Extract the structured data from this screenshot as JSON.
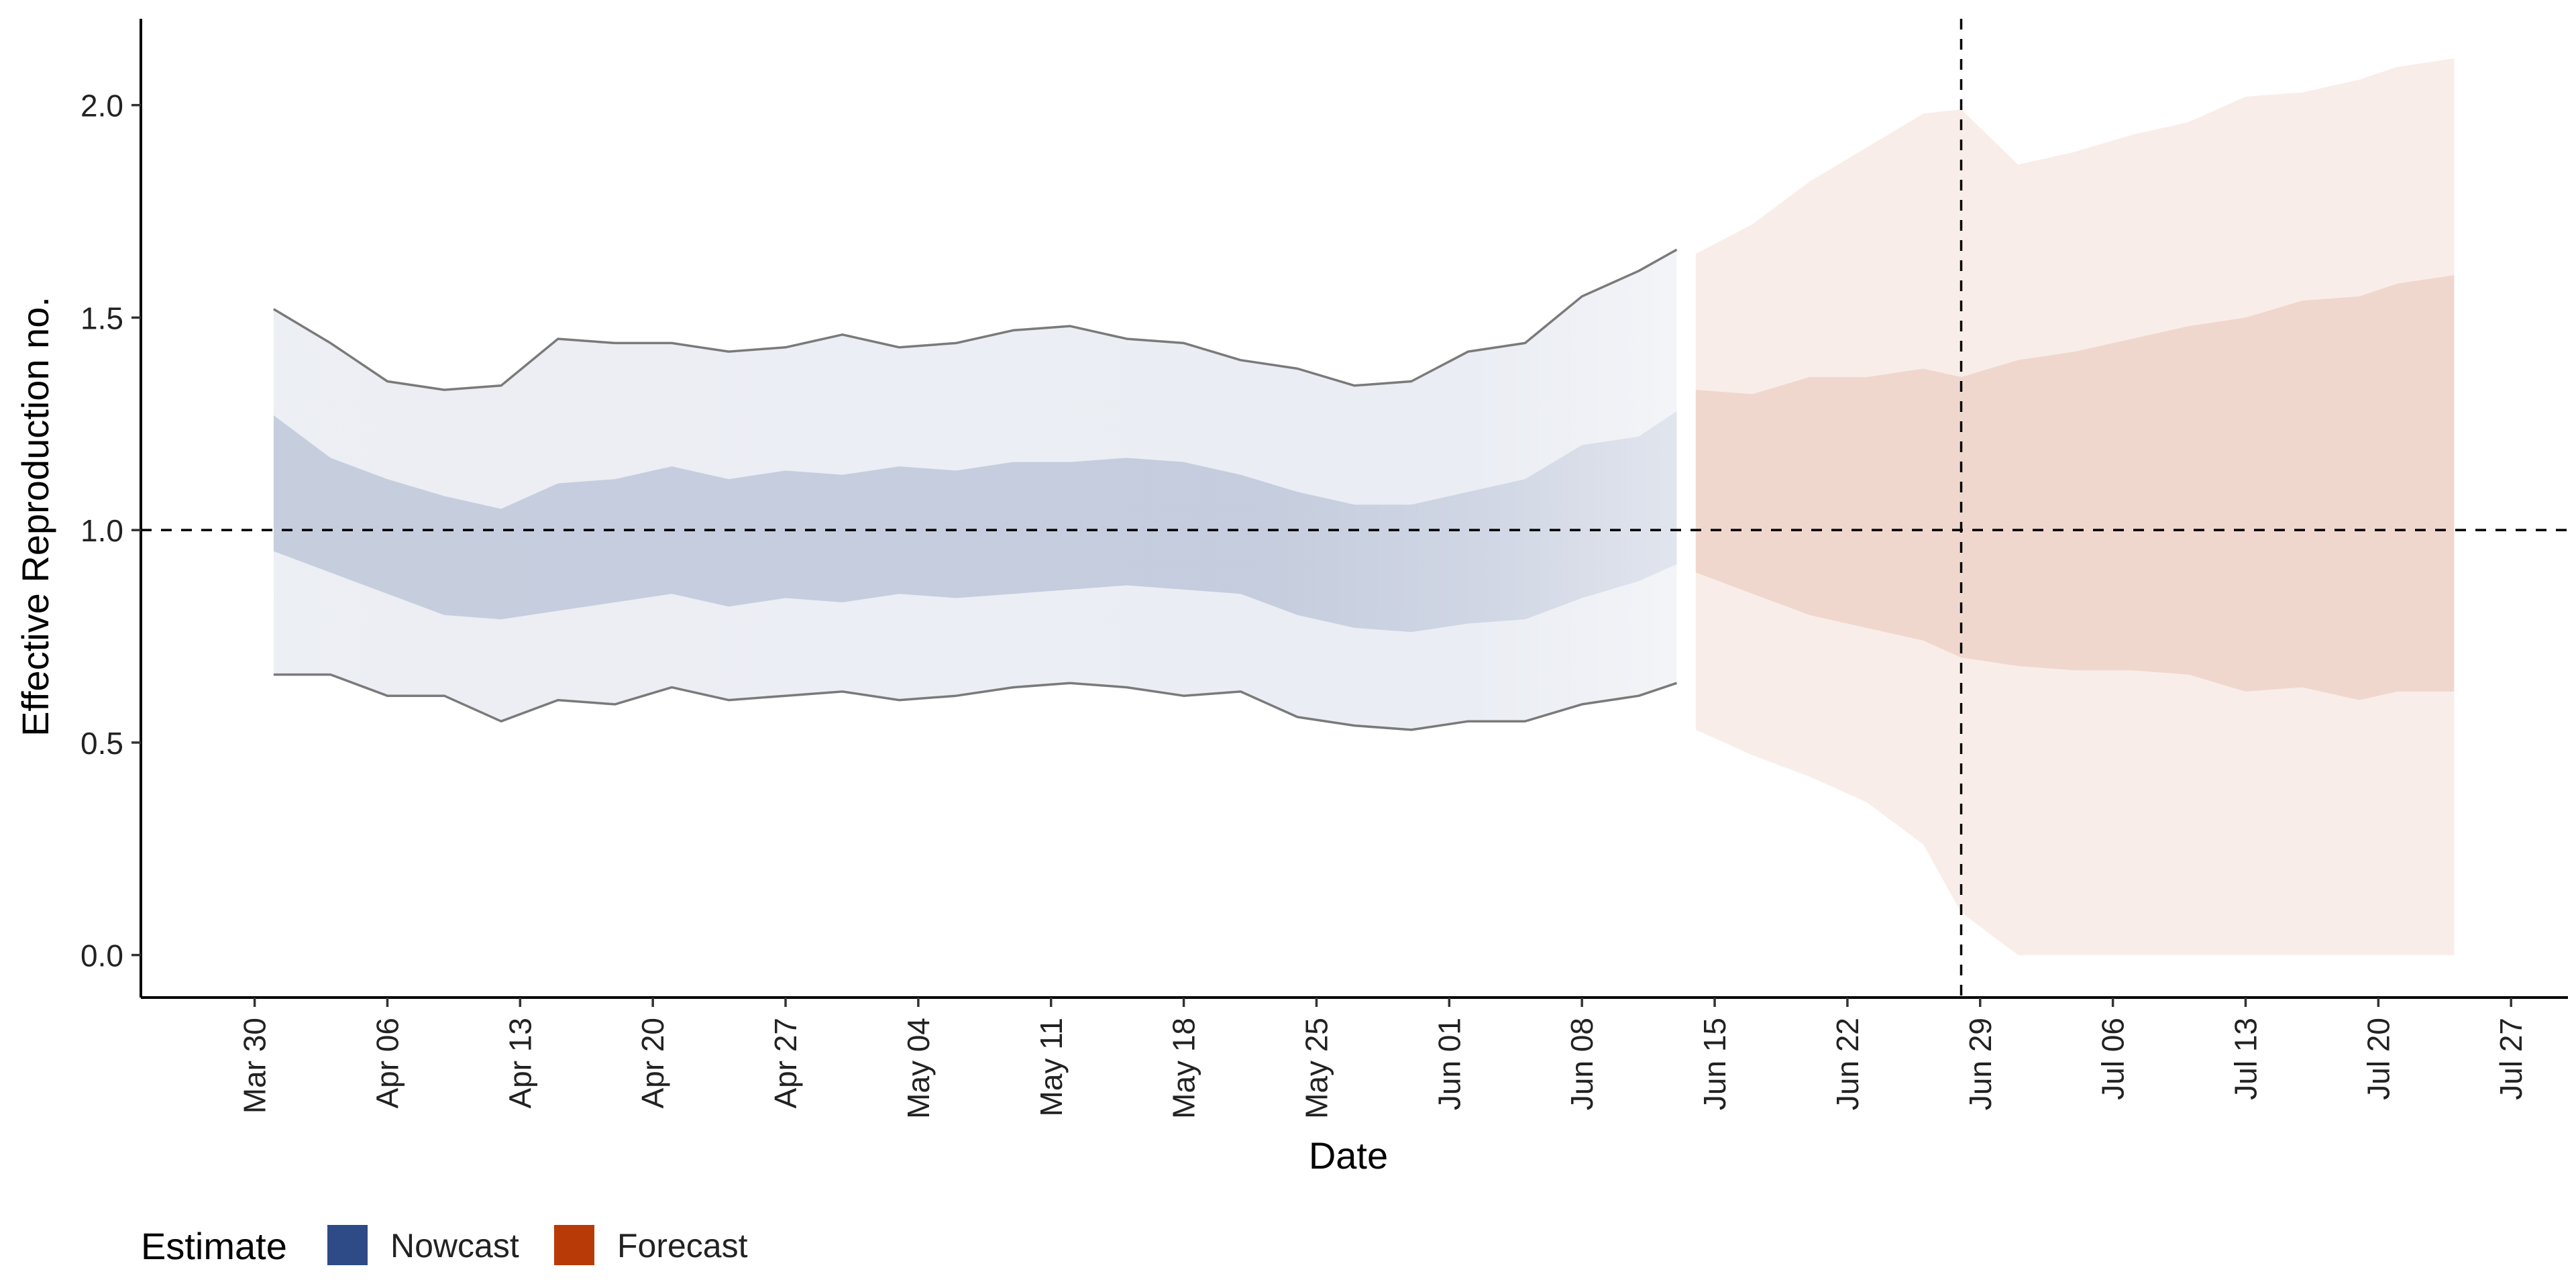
{
  "chart_data": {
    "type": "area",
    "xlabel": "Date",
    "ylabel": "Effective Reproduction no.",
    "x_axis": {
      "type": "date",
      "range": [
        "2020-03-24",
        "2020-07-30"
      ],
      "ticks": [
        {
          "date": "2020-03-30",
          "label": "Mar 30"
        },
        {
          "date": "2020-04-06",
          "label": "Apr 06"
        },
        {
          "date": "2020-04-13",
          "label": "Apr 13"
        },
        {
          "date": "2020-04-20",
          "label": "Apr 20"
        },
        {
          "date": "2020-04-27",
          "label": "Apr 27"
        },
        {
          "date": "2020-05-04",
          "label": "May 04"
        },
        {
          "date": "2020-05-11",
          "label": "May 11"
        },
        {
          "date": "2020-05-18",
          "label": "May 18"
        },
        {
          "date": "2020-05-25",
          "label": "May 25"
        },
        {
          "date": "2020-06-01",
          "label": "Jun 01"
        },
        {
          "date": "2020-06-08",
          "label": "Jun 08"
        },
        {
          "date": "2020-06-15",
          "label": "Jun 15"
        },
        {
          "date": "2020-06-22",
          "label": "Jun 22"
        },
        {
          "date": "2020-06-29",
          "label": "Jun 29"
        },
        {
          "date": "2020-07-06",
          "label": "Jul 06"
        },
        {
          "date": "2020-07-13",
          "label": "Jul 13"
        },
        {
          "date": "2020-07-20",
          "label": "Jul 20"
        },
        {
          "date": "2020-07-27",
          "label": "Jul 27"
        }
      ]
    },
    "y_axis": {
      "range": [
        -0.1,
        2.2
      ],
      "ticks": [
        {
          "value": 0.0,
          "label": "0.0"
        },
        {
          "value": 0.5,
          "label": "0.5"
        },
        {
          "value": 1.0,
          "label": "1.0"
        },
        {
          "value": 1.5,
          "label": "1.5"
        },
        {
          "value": 2.0,
          "label": "2.0"
        }
      ]
    },
    "reference_lines": {
      "horizontal_y": 1.0,
      "vertical_date": "2020-06-28"
    },
    "grid": false,
    "legend": {
      "title": "Estimate",
      "position": "bottom-left",
      "entries": [
        {
          "name": "Nowcast",
          "color": "#2e4a87"
        },
        {
          "name": "Forecast",
          "color": "#b83a06"
        }
      ]
    },
    "series": [
      {
        "name": "Nowcast",
        "color": "#2e4a87",
        "points": [
          {
            "x": "2020-03-31",
            "lower90": 0.66,
            "lower50": 0.95,
            "upper50": 1.27,
            "upper90": 1.52
          },
          {
            "x": "2020-04-03",
            "lower90": 0.66,
            "lower50": 0.9,
            "upper50": 1.17,
            "upper90": 1.44
          },
          {
            "x": "2020-04-06",
            "lower90": 0.61,
            "lower50": 0.85,
            "upper50": 1.12,
            "upper90": 1.35
          },
          {
            "x": "2020-04-09",
            "lower90": 0.61,
            "lower50": 0.8,
            "upper50": 1.08,
            "upper90": 1.33
          },
          {
            "x": "2020-04-12",
            "lower90": 0.55,
            "lower50": 0.79,
            "upper50": 1.05,
            "upper90": 1.34
          },
          {
            "x": "2020-04-15",
            "lower90": 0.6,
            "lower50": 0.81,
            "upper50": 1.11,
            "upper90": 1.45
          },
          {
            "x": "2020-04-18",
            "lower90": 0.59,
            "lower50": 0.83,
            "upper50": 1.12,
            "upper90": 1.44
          },
          {
            "x": "2020-04-21",
            "lower90": 0.63,
            "lower50": 0.85,
            "upper50": 1.15,
            "upper90": 1.44
          },
          {
            "x": "2020-04-24",
            "lower90": 0.6,
            "lower50": 0.82,
            "upper50": 1.12,
            "upper90": 1.42
          },
          {
            "x": "2020-04-27",
            "lower90": 0.61,
            "lower50": 0.84,
            "upper50": 1.14,
            "upper90": 1.43
          },
          {
            "x": "2020-04-30",
            "lower90": 0.62,
            "lower50": 0.83,
            "upper50": 1.13,
            "upper90": 1.46
          },
          {
            "x": "2020-05-03",
            "lower90": 0.6,
            "lower50": 0.85,
            "upper50": 1.15,
            "upper90": 1.43
          },
          {
            "x": "2020-05-06",
            "lower90": 0.61,
            "lower50": 0.84,
            "upper50": 1.14,
            "upper90": 1.44
          },
          {
            "x": "2020-05-09",
            "lower90": 0.63,
            "lower50": 0.85,
            "upper50": 1.16,
            "upper90": 1.47
          },
          {
            "x": "2020-05-12",
            "lower90": 0.64,
            "lower50": 0.86,
            "upper50": 1.16,
            "upper90": 1.48
          },
          {
            "x": "2020-05-15",
            "lower90": 0.63,
            "lower50": 0.87,
            "upper50": 1.17,
            "upper90": 1.45
          },
          {
            "x": "2020-05-18",
            "lower90": 0.61,
            "lower50": 0.86,
            "upper50": 1.16,
            "upper90": 1.44
          },
          {
            "x": "2020-05-21",
            "lower90": 0.62,
            "lower50": 0.85,
            "upper50": 1.13,
            "upper90": 1.4
          },
          {
            "x": "2020-05-24",
            "lower90": 0.56,
            "lower50": 0.8,
            "upper50": 1.09,
            "upper90": 1.38
          },
          {
            "x": "2020-05-27",
            "lower90": 0.54,
            "lower50": 0.77,
            "upper50": 1.06,
            "upper90": 1.34
          },
          {
            "x": "2020-05-30",
            "lower90": 0.53,
            "lower50": 0.76,
            "upper50": 1.06,
            "upper90": 1.35
          },
          {
            "x": "2020-06-02",
            "lower90": 0.55,
            "lower50": 0.78,
            "upper50": 1.09,
            "upper90": 1.42
          },
          {
            "x": "2020-06-05",
            "lower90": 0.55,
            "lower50": 0.79,
            "upper50": 1.12,
            "upper90": 1.44
          },
          {
            "x": "2020-06-08",
            "lower90": 0.59,
            "lower50": 0.84,
            "upper50": 1.2,
            "upper90": 1.55
          },
          {
            "x": "2020-06-11",
            "lower90": 0.61,
            "lower50": 0.88,
            "upper50": 1.22,
            "upper90": 1.61
          },
          {
            "x": "2020-06-13",
            "lower90": 0.64,
            "lower50": 0.92,
            "upper50": 1.28,
            "upper90": 1.66
          }
        ]
      },
      {
        "name": "Forecast",
        "color": "#b83a06",
        "points": [
          {
            "x": "2020-06-14",
            "lower90": 0.53,
            "lower50": 0.9,
            "upper50": 1.33,
            "upper90": 1.65
          },
          {
            "x": "2020-06-17",
            "lower90": 0.47,
            "lower50": 0.85,
            "upper50": 1.32,
            "upper90": 1.72
          },
          {
            "x": "2020-06-20",
            "lower90": 0.42,
            "lower50": 0.8,
            "upper50": 1.36,
            "upper90": 1.82
          },
          {
            "x": "2020-06-23",
            "lower90": 0.36,
            "lower50": 0.77,
            "upper50": 1.36,
            "upper90": 1.9
          },
          {
            "x": "2020-06-26",
            "lower90": 0.26,
            "lower50": 0.74,
            "upper50": 1.38,
            "upper90": 1.98
          },
          {
            "x": "2020-06-28",
            "lower90": 0.1,
            "lower50": 0.7,
            "upper50": 1.36,
            "upper90": 1.99
          },
          {
            "x": "2020-07-01",
            "lower90": 0.0,
            "lower50": 0.68,
            "upper50": 1.4,
            "upper90": 1.86
          },
          {
            "x": "2020-07-04",
            "lower90": 0.0,
            "lower50": 0.67,
            "upper50": 1.42,
            "upper90": 1.89
          },
          {
            "x": "2020-07-07",
            "lower90": 0.0,
            "lower50": 0.67,
            "upper50": 1.45,
            "upper90": 1.93
          },
          {
            "x": "2020-07-10",
            "lower90": 0.0,
            "lower50": 0.66,
            "upper50": 1.48,
            "upper90": 1.96
          },
          {
            "x": "2020-07-13",
            "lower90": 0.0,
            "lower50": 0.62,
            "upper50": 1.5,
            "upper90": 2.02
          },
          {
            "x": "2020-07-16",
            "lower90": 0.0,
            "lower50": 0.63,
            "upper50": 1.54,
            "upper90": 2.03
          },
          {
            "x": "2020-07-19",
            "lower90": 0.0,
            "lower50": 0.6,
            "upper50": 1.55,
            "upper90": 2.06
          },
          {
            "x": "2020-07-21",
            "lower90": 0.0,
            "lower50": 0.62,
            "upper50": 1.58,
            "upper90": 2.09
          },
          {
            "x": "2020-07-24",
            "lower90": 0.0,
            "lower50": 0.62,
            "upper50": 1.6,
            "upper90": 2.11
          }
        ]
      }
    ]
  }
}
